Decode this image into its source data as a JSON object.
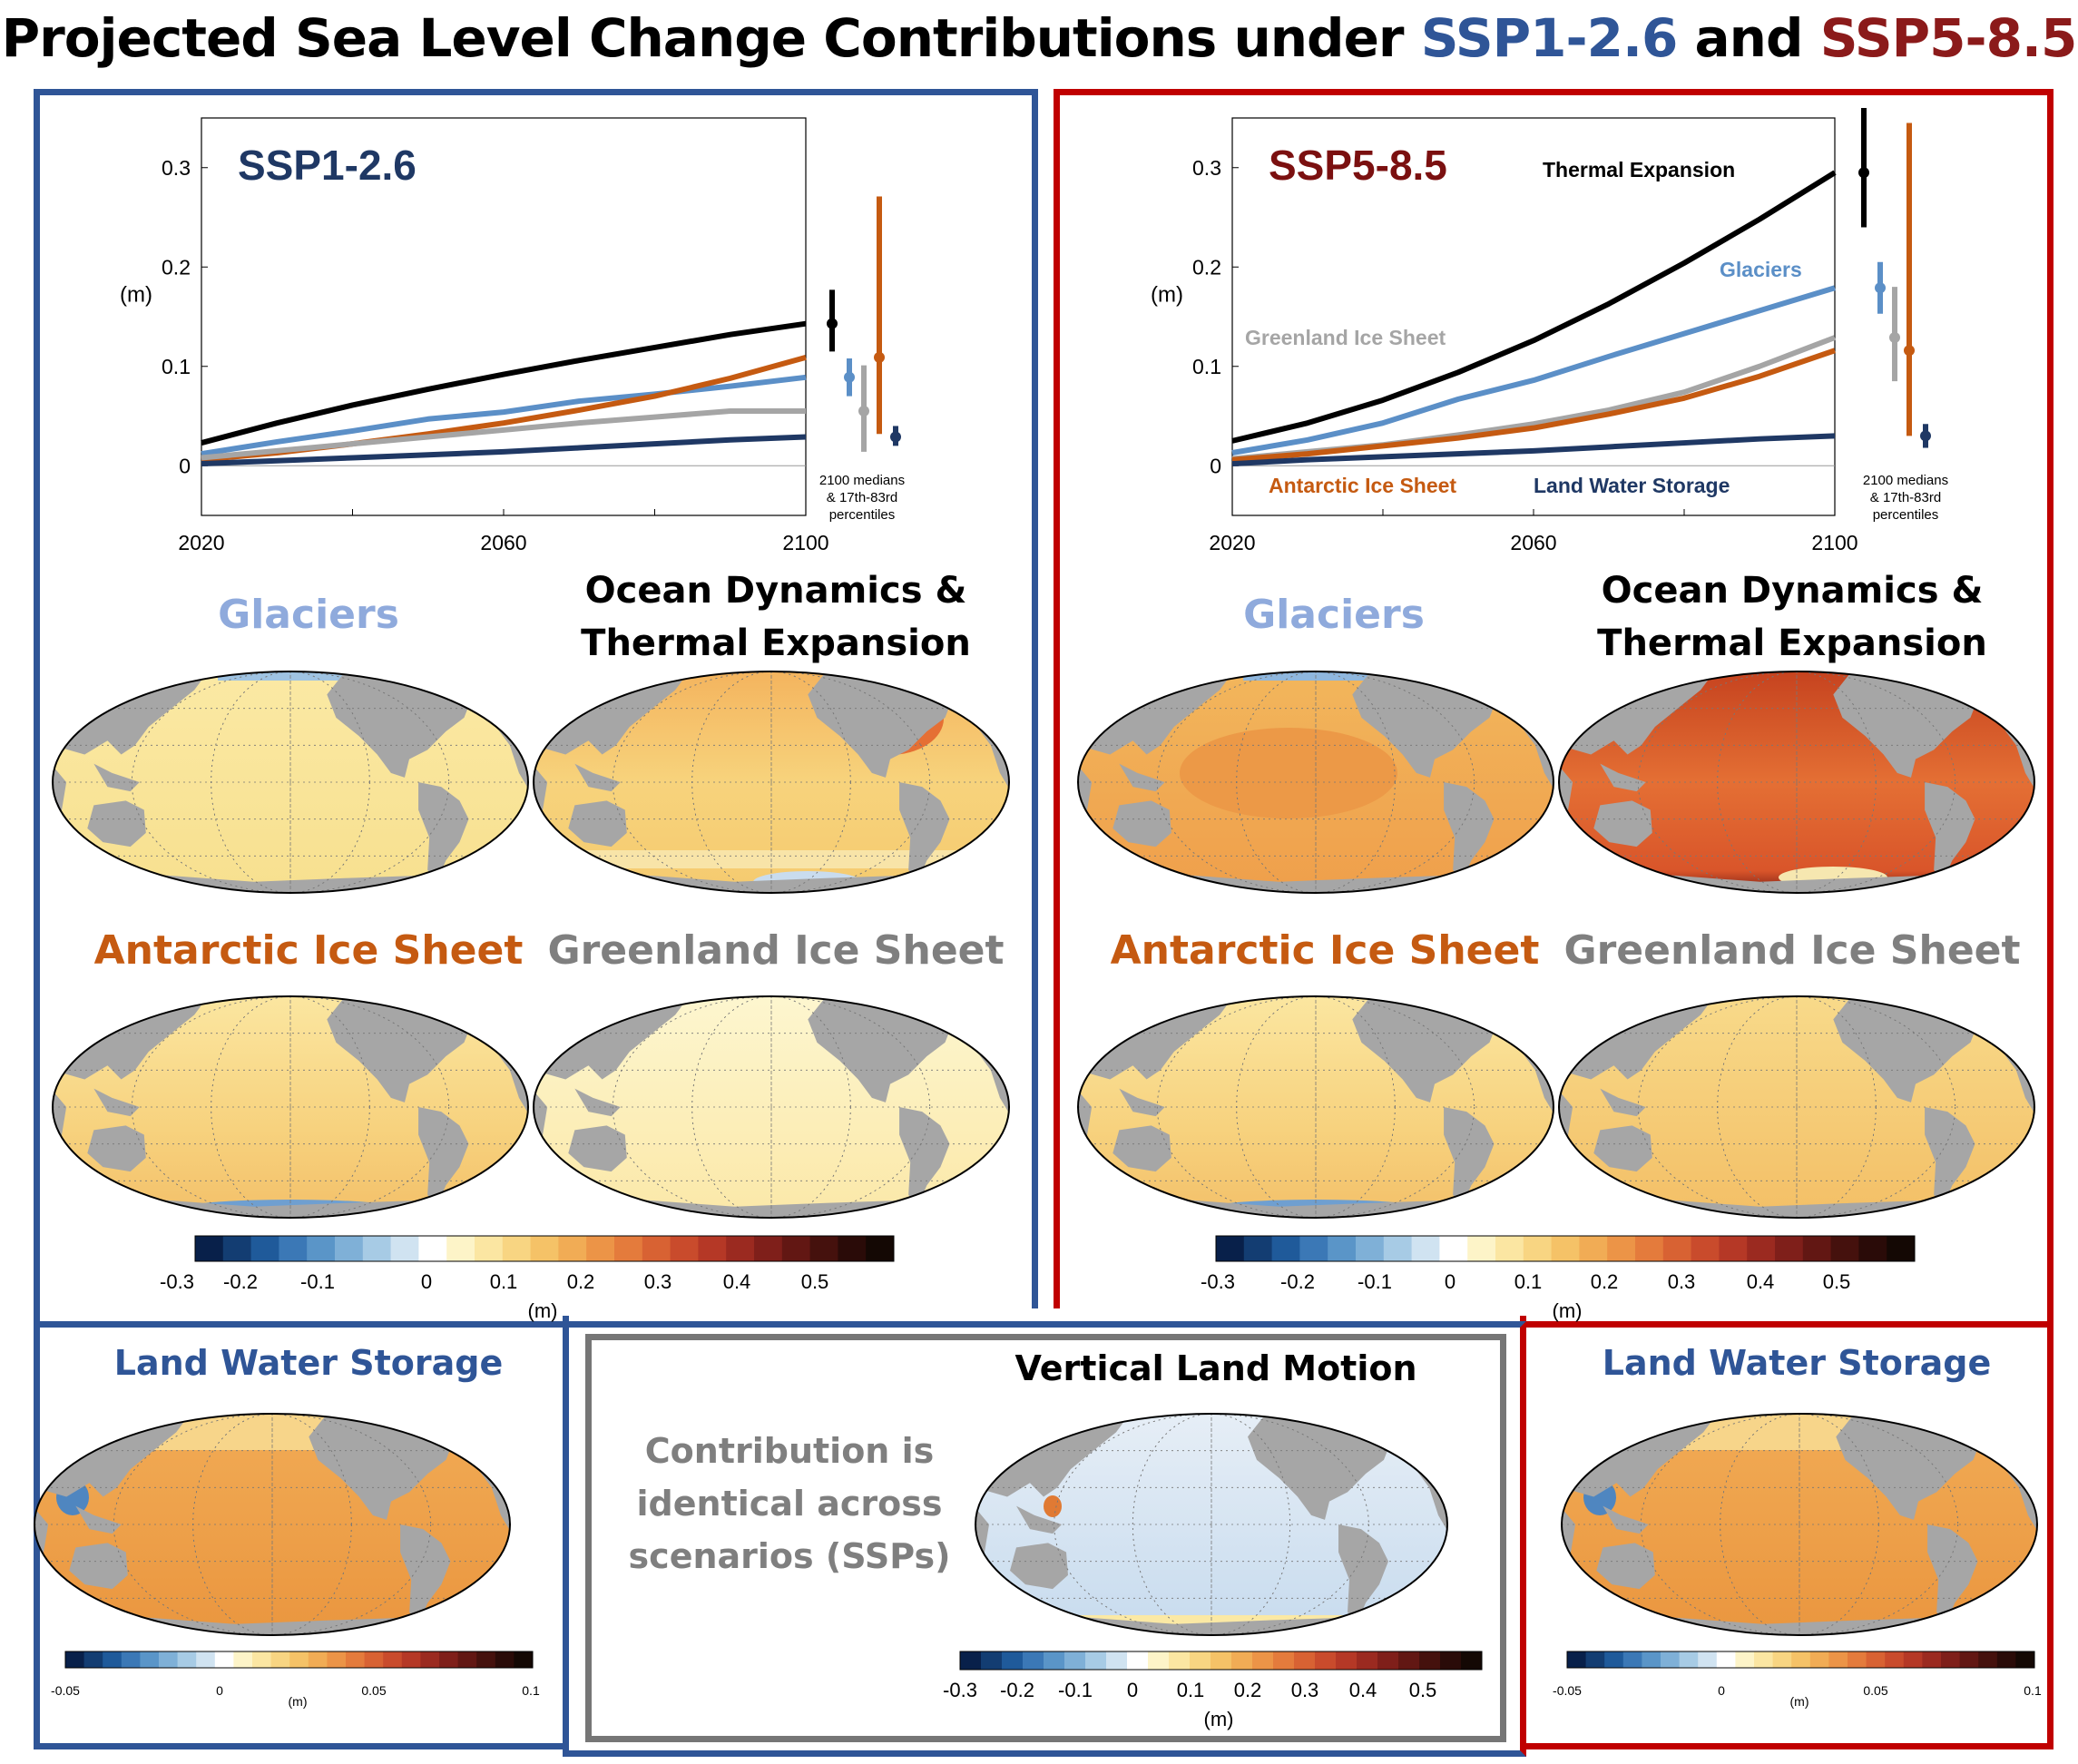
{
  "title": {
    "prefix": "Projected Sea Level Change Contributions under",
    "ssp1": "SSP1-2.6",
    "and": "and",
    "ssp5": "SSP5-8.5"
  },
  "colors": {
    "ssp1_blue": "#2f5597",
    "ssp5_red": "#c00000",
    "thermal": "#000000",
    "glaciers": "#5b8fc7",
    "greenland": "#a5a5a5",
    "antarctic": "#c55a11",
    "land_water": "#1f3864"
  },
  "panels": {
    "left": {
      "chart_title": "SSP1-2.6",
      "median_note": [
        "2100 medians",
        "& 17th-83rd",
        "percentiles"
      ],
      "glaciers": "Glaciers",
      "ocean_line1": "Ocean Dynamics &",
      "ocean_line2": "Thermal Expansion",
      "antarctic": "Antarctic Ice Sheet",
      "greenland": "Greenland Ice Sheet",
      "colorbar_ticks": [
        "-0.3",
        "-0.2",
        "-0.1",
        "0",
        "0.1",
        "0.2",
        "0.3",
        "0.4",
        "0.5"
      ],
      "colorbar_unit": "(m)",
      "land_water": "Land Water Storage",
      "lws_ticks": [
        "-0.05",
        "0",
        "0.05",
        "0.1"
      ],
      "lws_unit": "(m)"
    },
    "right": {
      "chart_title": "SSP5-8.5",
      "series_labels": {
        "thermal": "Thermal Expansion",
        "glaciers": "Glaciers",
        "greenland": "Greenland Ice Sheet",
        "antarctic": "Antarctic Ice Sheet",
        "land_water": "Land Water Storage"
      },
      "median_note": [
        "2100 medians",
        "& 17th-83rd",
        "percentiles"
      ],
      "glaciers": "Glaciers",
      "ocean_line1": "Ocean Dynamics &",
      "ocean_line2": "Thermal Expansion",
      "antarctic": "Antarctic Ice Sheet",
      "greenland": "Greenland Ice Sheet",
      "colorbar_ticks": [
        "-0.3",
        "-0.2",
        "-0.1",
        "0",
        "0.1",
        "0.2",
        "0.3",
        "0.4",
        "0.5"
      ],
      "colorbar_unit": "(m)",
      "land_water": "Land Water Storage",
      "lws_ticks": [
        "-0.05",
        "0",
        "0.05",
        "0.1"
      ],
      "lws_unit": "(m)"
    },
    "middle": {
      "vlm_title": "Vertical Land Motion",
      "note": [
        "Contribution is",
        "identical across",
        "scenarios (SSPs)"
      ],
      "colorbar_ticks": [
        "-0.3",
        "-0.2",
        "-0.1",
        "0",
        "0.1",
        "0.2",
        "0.3",
        "0.4",
        "0.5"
      ],
      "colorbar_unit": "(m)"
    }
  },
  "chart_data": [
    {
      "type": "line",
      "title": "SSP1-2.6",
      "ylabel": "(m)",
      "x": [
        2020,
        2030,
        2040,
        2050,
        2060,
        2070,
        2080,
        2090,
        2100
      ],
      "xticks": [
        "2020",
        "2060",
        "2100"
      ],
      "yticks": [
        "0",
        "0.1",
        "0.2",
        "0.3"
      ],
      "xlim": [
        2020,
        2100
      ],
      "ylim": [
        -0.05,
        0.35
      ],
      "series": [
        {
          "name": "Thermal Expansion",
          "key": "thermal",
          "values": [
            0.023,
            0.043,
            0.061,
            0.077,
            0.092,
            0.106,
            0.119,
            0.132,
            0.143
          ]
        },
        {
          "name": "Glaciers",
          "key": "glaciers",
          "values": [
            0.012,
            0.024,
            0.035,
            0.047,
            0.054,
            0.065,
            0.072,
            0.08,
            0.089
          ]
        },
        {
          "name": "Antarctic Ice Sheet",
          "key": "antarctic",
          "values": [
            0.006,
            0.013,
            0.022,
            0.032,
            0.043,
            0.056,
            0.07,
            0.088,
            0.109
          ]
        },
        {
          "name": "Greenland Ice Sheet",
          "key": "greenland",
          "values": [
            0.008,
            0.015,
            0.022,
            0.029,
            0.036,
            0.043,
            0.049,
            0.055,
            0.055
          ]
        },
        {
          "name": "Land Water Storage",
          "key": "land_water",
          "values": [
            0.002,
            0.005,
            0.008,
            0.011,
            0.014,
            0.018,
            0.022,
            0.026,
            0.029
          ]
        }
      ],
      "ranges_2100": [
        {
          "key": "thermal",
          "median": 0.143,
          "low": 0.115,
          "high": 0.177
        },
        {
          "key": "glaciers",
          "median": 0.089,
          "low": 0.07,
          "high": 0.108
        },
        {
          "key": "greenland",
          "median": 0.055,
          "low": 0.014,
          "high": 0.101
        },
        {
          "key": "antarctic",
          "median": 0.109,
          "low": 0.032,
          "high": 0.271
        },
        {
          "key": "land_water",
          "median": 0.029,
          "low": 0.02,
          "high": 0.04
        }
      ]
    },
    {
      "type": "line",
      "title": "SSP5-8.5",
      "ylabel": "(m)",
      "x": [
        2020,
        2030,
        2040,
        2050,
        2060,
        2070,
        2080,
        2090,
        2100
      ],
      "xticks": [
        "2020",
        "2060",
        "2100"
      ],
      "yticks": [
        "0",
        "0.1",
        "0.2",
        "0.3"
      ],
      "xlim": [
        2020,
        2100
      ],
      "ylim": [
        -0.05,
        0.35
      ],
      "series": [
        {
          "name": "Thermal Expansion",
          "key": "thermal",
          "values": [
            0.025,
            0.043,
            0.066,
            0.094,
            0.126,
            0.163,
            0.204,
            0.248,
            0.295
          ]
        },
        {
          "name": "Glaciers",
          "key": "glaciers",
          "values": [
            0.013,
            0.026,
            0.043,
            0.067,
            0.086,
            0.11,
            0.133,
            0.156,
            0.179
          ]
        },
        {
          "name": "Greenland Ice Sheet",
          "key": "greenland",
          "values": [
            0.007,
            0.014,
            0.021,
            0.031,
            0.042,
            0.056,
            0.074,
            0.1,
            0.129
          ]
        },
        {
          "name": "Antarctic Ice Sheet",
          "key": "antarctic",
          "values": [
            0.006,
            0.012,
            0.02,
            0.028,
            0.038,
            0.052,
            0.068,
            0.09,
            0.116
          ]
        },
        {
          "name": "Land Water Storage",
          "key": "land_water",
          "values": [
            0.002,
            0.006,
            0.009,
            0.012,
            0.015,
            0.019,
            0.023,
            0.027,
            0.03
          ]
        }
      ],
      "ranges_2100": [
        {
          "key": "thermal",
          "median": 0.295,
          "low": 0.24,
          "high": 0.36
        },
        {
          "key": "glaciers",
          "median": 0.179,
          "low": 0.153,
          "high": 0.205
        },
        {
          "key": "greenland",
          "median": 0.129,
          "low": 0.085,
          "high": 0.18
        },
        {
          "key": "antarctic",
          "median": 0.116,
          "low": 0.03,
          "high": 0.345
        },
        {
          "key": "land_water",
          "median": 0.03,
          "low": 0.018,
          "high": 0.042
        }
      ]
    }
  ]
}
